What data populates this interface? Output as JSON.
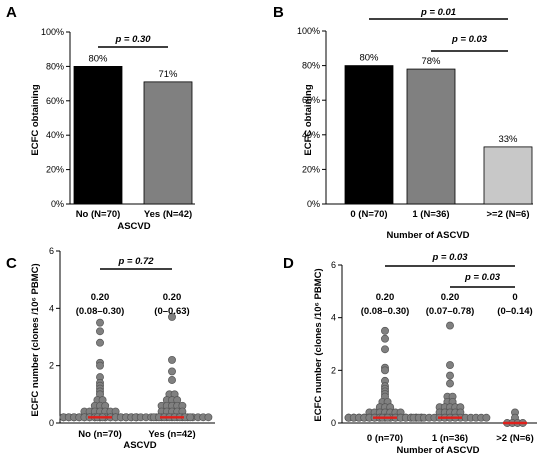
{
  "chart_data": [
    {
      "panel": "A",
      "type": "bar",
      "categories": [
        "No (N=70)",
        "Yes (N=42)"
      ],
      "values": [
        80,
        71
      ],
      "value_labels": [
        "80%",
        "71%"
      ],
      "bar_colors": [
        "#000000",
        "#808080"
      ],
      "ylabel": "ECFC obtaining",
      "xlabel": "ASCVD",
      "ylim": [
        0,
        100
      ],
      "yticks": [
        0,
        20,
        40,
        60,
        80,
        100
      ],
      "ytick_labels": [
        "0%",
        "20%",
        "40%",
        "60%",
        "80%",
        "100%"
      ],
      "comparisons": [
        {
          "from": 0,
          "to": 1,
          "label": "p = 0.30"
        }
      ]
    },
    {
      "panel": "B",
      "type": "bar",
      "categories": [
        "0 (N=70)",
        "1 (N=36)",
        ">=2 (N=6)"
      ],
      "values": [
        80,
        78,
        33
      ],
      "value_labels": [
        "80%",
        "78%",
        "33%"
      ],
      "bar_colors": [
        "#000000",
        "#808080",
        "#c8c8c8"
      ],
      "ylabel": "ECFC obtaining",
      "xlabel": "Number of ASCVD",
      "ylim": [
        0,
        100
      ],
      "yticks": [
        0,
        20,
        40,
        60,
        80,
        100
      ],
      "ytick_labels": [
        "0%",
        "20%",
        "40%",
        "60%",
        "80%",
        "100%"
      ],
      "comparisons": [
        {
          "from": 0,
          "to": 2,
          "label": "p = 0.01"
        },
        {
          "from": 1,
          "to": 2,
          "label": "p = 0.03"
        }
      ]
    },
    {
      "panel": "C",
      "type": "scatter",
      "categories": [
        "No (n=70)",
        "Yes (n=42)"
      ],
      "medians": [
        0.2,
        0.2
      ],
      "median_labels": [
        "0.20",
        "0.20"
      ],
      "iqr_labels": [
        "(0.08–0.30)",
        "(0–0.63)"
      ],
      "points": [
        [
          3.5,
          3.2,
          2.8,
          2.1,
          2.0,
          1.6,
          1.4,
          1.3,
          1.2,
          1.1,
          1.0,
          0.8,
          0.8,
          0.6,
          0.6,
          0.6,
          0.4,
          0.4,
          0.4,
          0.4,
          0.4,
          0.4,
          0.4,
          0.2,
          0.2,
          0.2,
          0.2,
          0.2,
          0.2,
          0.2,
          0.2,
          0.2,
          0.2,
          0.2,
          0.2,
          0.2,
          0.2,
          0.2,
          0.2,
          0.2,
          0.2,
          0.2,
          0.2,
          0.2,
          0.2,
          0.2,
          0.2,
          0.2,
          0.2,
          0.2,
          0.2,
          0.2,
          0.2,
          0.2,
          0.2,
          0.2,
          0.2,
          0.2,
          0.2,
          0.2,
          0.2,
          0.2,
          0.2,
          0.2,
          0.2,
          0.2,
          0.2,
          0.2,
          0.2,
          0.2
        ],
        [
          3.7,
          2.2,
          1.8,
          1.5,
          1.0,
          1.0,
          0.8,
          0.8,
          0.8,
          0.6,
          0.6,
          0.6,
          0.6,
          0.6,
          0.4,
          0.4,
          0.4,
          0.4,
          0.4,
          0.2,
          0.2,
          0.2,
          0.2,
          0.2,
          0.2,
          0.2,
          0.2,
          0.2,
          0.2,
          0.2,
          0.2,
          0.2,
          0.2,
          0.2,
          0.2,
          0.2,
          0.2,
          0.2,
          0.2,
          0.2,
          0.2,
          0.2
        ]
      ],
      "ylabel": "ECFC number (clones /10⁶ PBMC)",
      "xlabel": "ASCVD",
      "ylim": [
        0,
        6
      ],
      "yticks": [
        0,
        2,
        4,
        6
      ],
      "ytick_labels": [
        "0",
        "2",
        "4",
        "6"
      ],
      "comparisons": [
        {
          "from": 0,
          "to": 1,
          "label": "p = 0.72"
        }
      ]
    },
    {
      "panel": "D",
      "type": "scatter",
      "categories": [
        "0 (n=70)",
        "1 (n=36)",
        ">2 (N=6)"
      ],
      "medians": [
        0.2,
        0.2,
        0
      ],
      "median_labels": [
        "0.20",
        "0.20",
        "0"
      ],
      "iqr_labels": [
        "(0.08–0.30)",
        "(0.07–0.78)",
        "(0–0.14)"
      ],
      "points": [
        [
          3.5,
          3.2,
          2.8,
          2.1,
          2.0,
          1.6,
          1.4,
          1.3,
          1.2,
          1.1,
          1.0,
          0.8,
          0.8,
          0.6,
          0.6,
          0.6,
          0.4,
          0.4,
          0.4,
          0.4,
          0.4,
          0.4,
          0.4,
          0.2,
          0.2,
          0.2,
          0.2,
          0.2,
          0.2,
          0.2,
          0.2,
          0.2,
          0.2,
          0.2,
          0.2,
          0.2,
          0.2,
          0.2,
          0.2,
          0.2,
          0.2,
          0.2,
          0.2,
          0.2,
          0.2,
          0.2,
          0.2,
          0.2,
          0.2,
          0.2,
          0.2,
          0.2,
          0.2,
          0.2,
          0.2,
          0.2,
          0.2,
          0.2,
          0.2,
          0.2,
          0.2,
          0.2,
          0.2,
          0.2,
          0.2,
          0.2,
          0.2,
          0.2,
          0.2,
          0.2
        ],
        [
          3.7,
          2.2,
          1.8,
          1.5,
          1.0,
          1.0,
          0.8,
          0.8,
          0.6,
          0.6,
          0.6,
          0.6,
          0.6,
          0.4,
          0.4,
          0.4,
          0.4,
          0.4,
          0.2,
          0.2,
          0.2,
          0.2,
          0.2,
          0.2,
          0.2,
          0.2,
          0.2,
          0.2,
          0.2,
          0.2,
          0.2,
          0.2,
          0.2,
          0.2,
          0.2,
          0.2
        ],
        [
          0.4,
          0.2,
          0,
          0,
          0,
          0
        ]
      ],
      "ylabel": "ECFC number (clones /10⁶ PBMC)",
      "xlabel": "Number of ASCVD",
      "ylim": [
        0,
        6
      ],
      "yticks": [
        0,
        2,
        4,
        6
      ],
      "ytick_labels": [
        "0",
        "2",
        "4",
        "6"
      ],
      "comparisons": [
        {
          "from": 0,
          "to": 2,
          "label": "p = 0.03"
        },
        {
          "from": 1,
          "to": 2,
          "label": "p = 0.03"
        }
      ]
    }
  ]
}
